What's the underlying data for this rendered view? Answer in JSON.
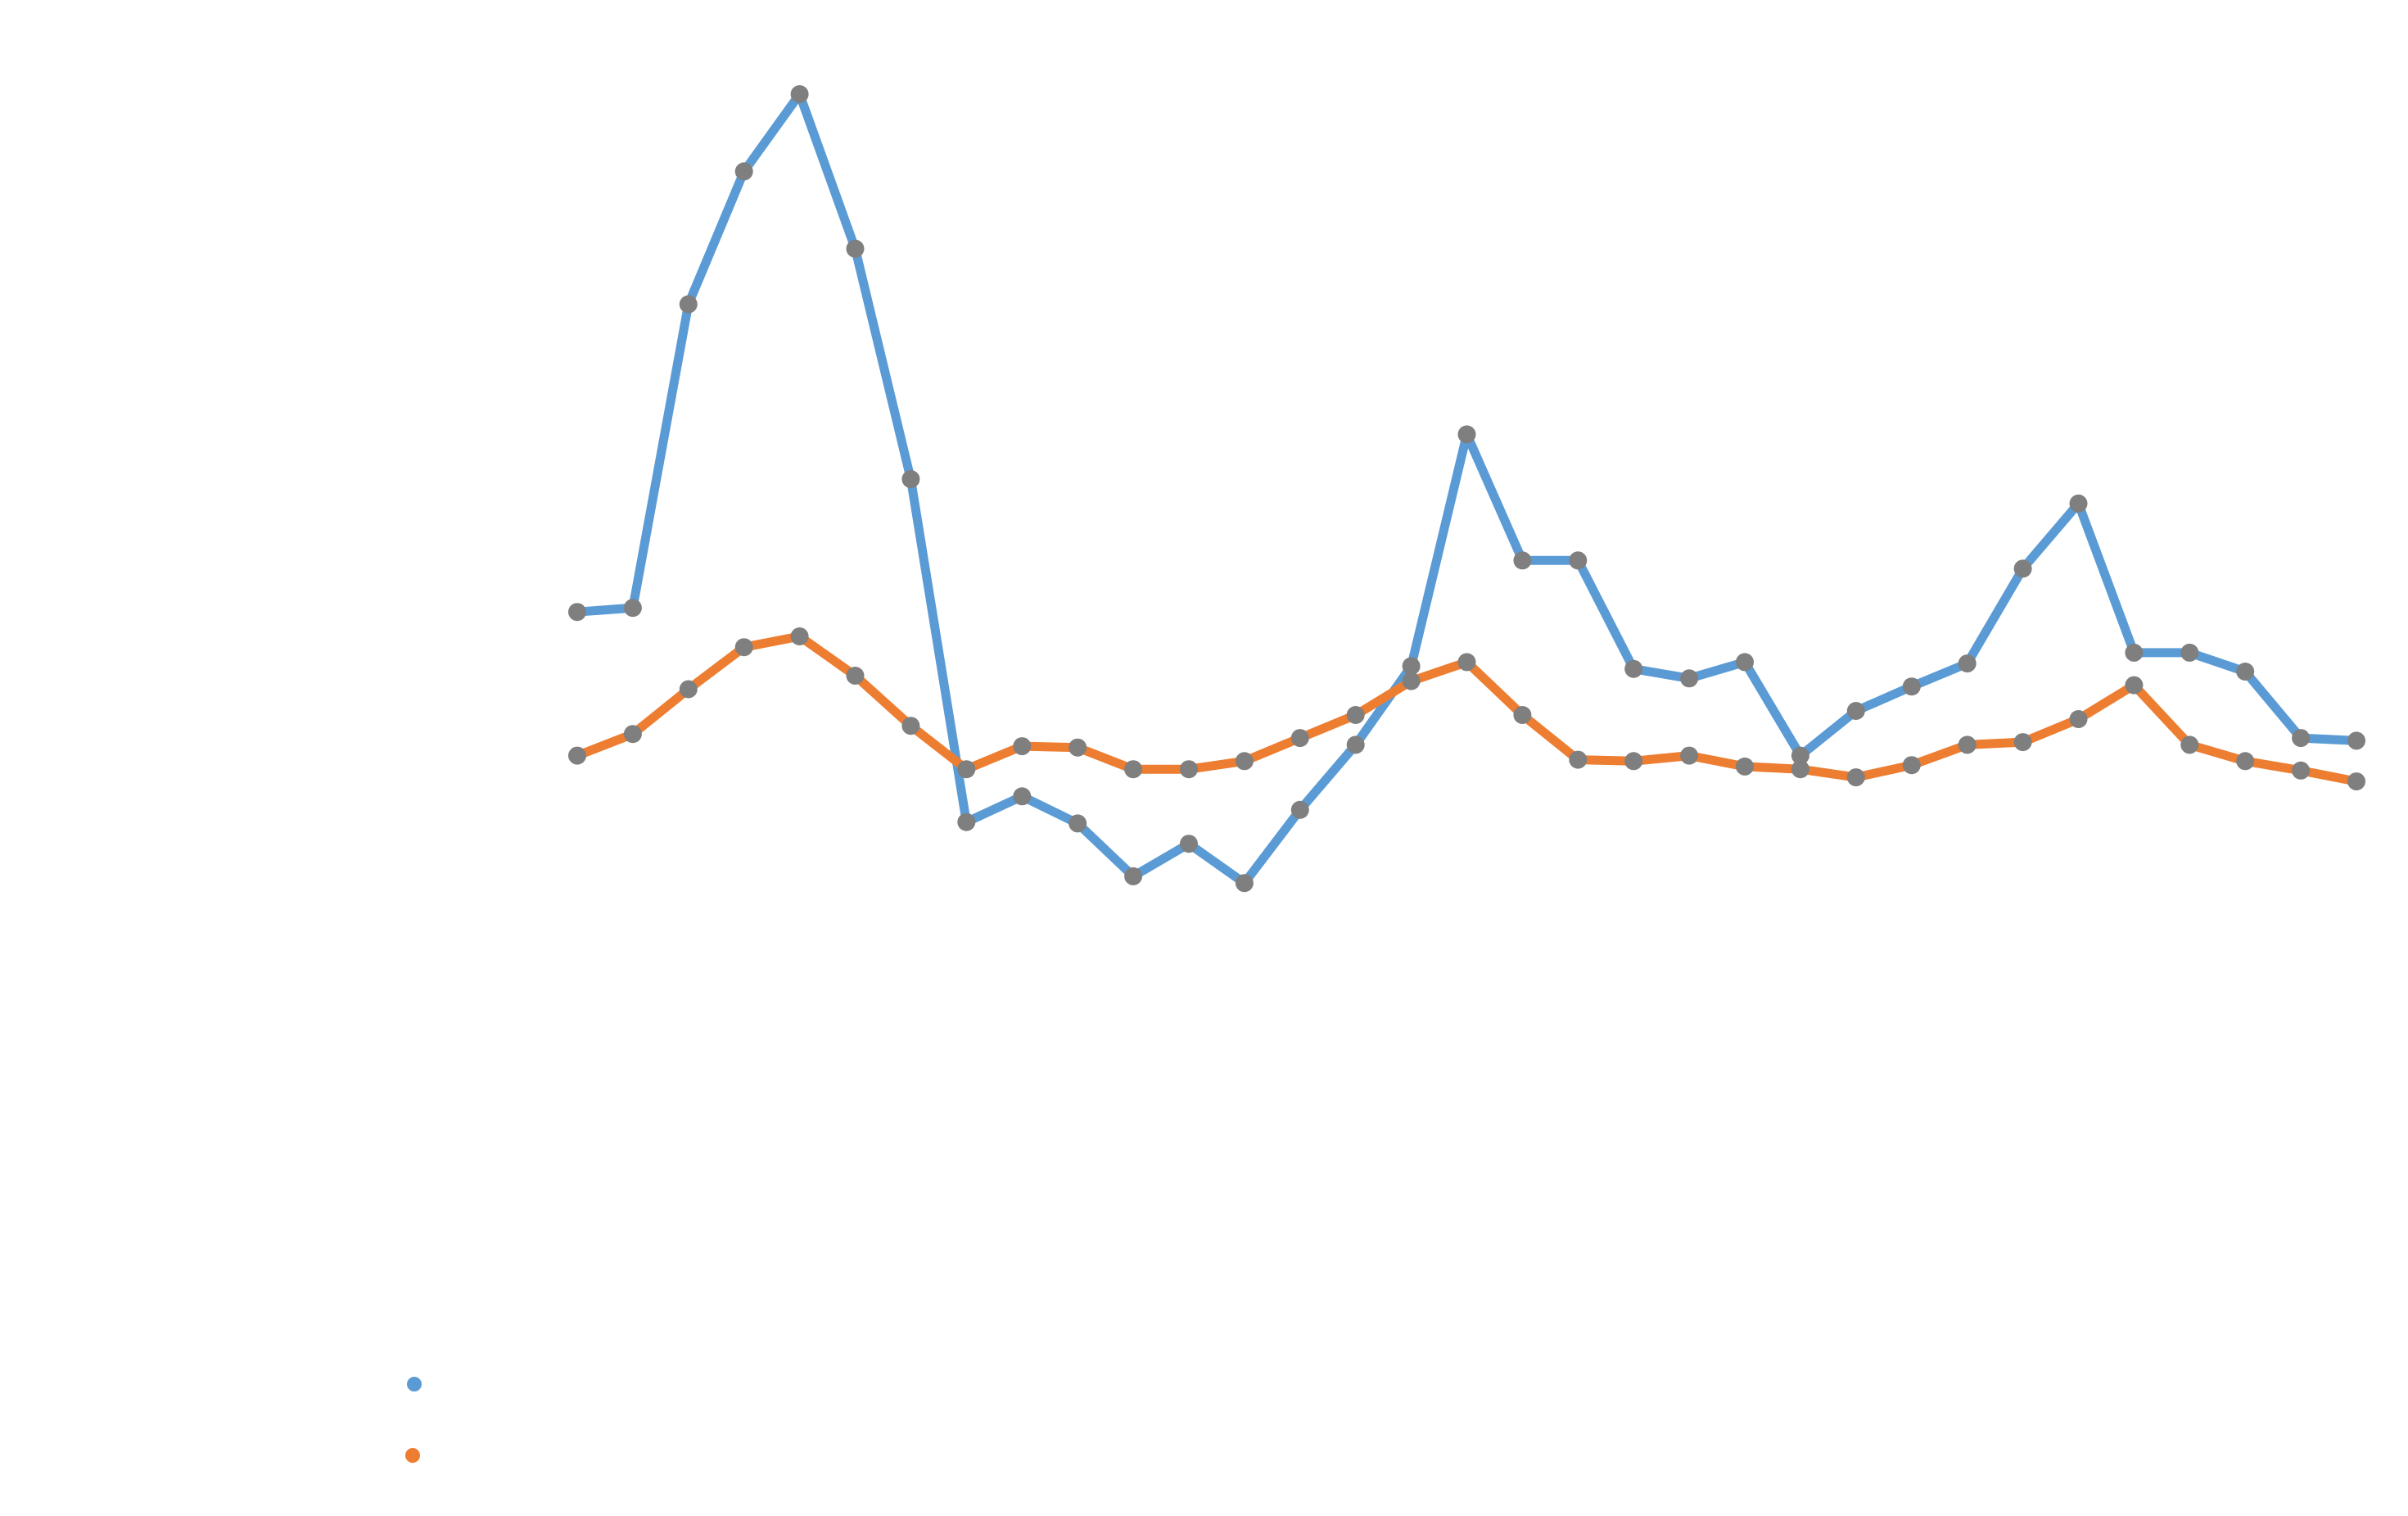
{
  "chart_data": {
    "type": "line",
    "title": "",
    "xlabel": "",
    "ylabel": "",
    "x": [
      1,
      2,
      3,
      4,
      5,
      6,
      7,
      8,
      9,
      10,
      11,
      12,
      13,
      14,
      15,
      16,
      17,
      18,
      19,
      20,
      21,
      22,
      23,
      24,
      25,
      26,
      27,
      28,
      29,
      30,
      31,
      32,
      33
    ],
    "ylim": [
      0,
      100
    ],
    "grid": false,
    "legend": "bottom-left",
    "series": [
      {
        "name": "",
        "color": "#5b9bd5",
        "values": [
          61.8,
          62.1,
          84.5,
          94.3,
          100.0,
          88.6,
          71.6,
          46.3,
          48.2,
          46.2,
          42.3,
          44.7,
          41.8,
          47.2,
          52.0,
          57.8,
          74.9,
          65.6,
          65.6,
          57.6,
          56.9,
          58.1,
          51.2,
          54.5,
          56.3,
          58.0,
          65.0,
          69.8,
          58.8,
          58.8,
          57.4,
          52.5,
          52.3
        ]
      },
      {
        "name": "",
        "color": "#ed7d31",
        "values": [
          51.2,
          52.8,
          56.1,
          59.2,
          60.0,
          57.1,
          53.4,
          50.2,
          51.9,
          51.8,
          50.2,
          50.2,
          50.8,
          52.5,
          54.2,
          56.7,
          58.1,
          54.2,
          50.9,
          50.8,
          51.2,
          50.4,
          50.2,
          49.6,
          50.5,
          52.0,
          52.2,
          53.9,
          56.4,
          52.0,
          50.8,
          50.1,
          49.3
        ]
      }
    ],
    "marker_color": "#7f7f7f"
  }
}
